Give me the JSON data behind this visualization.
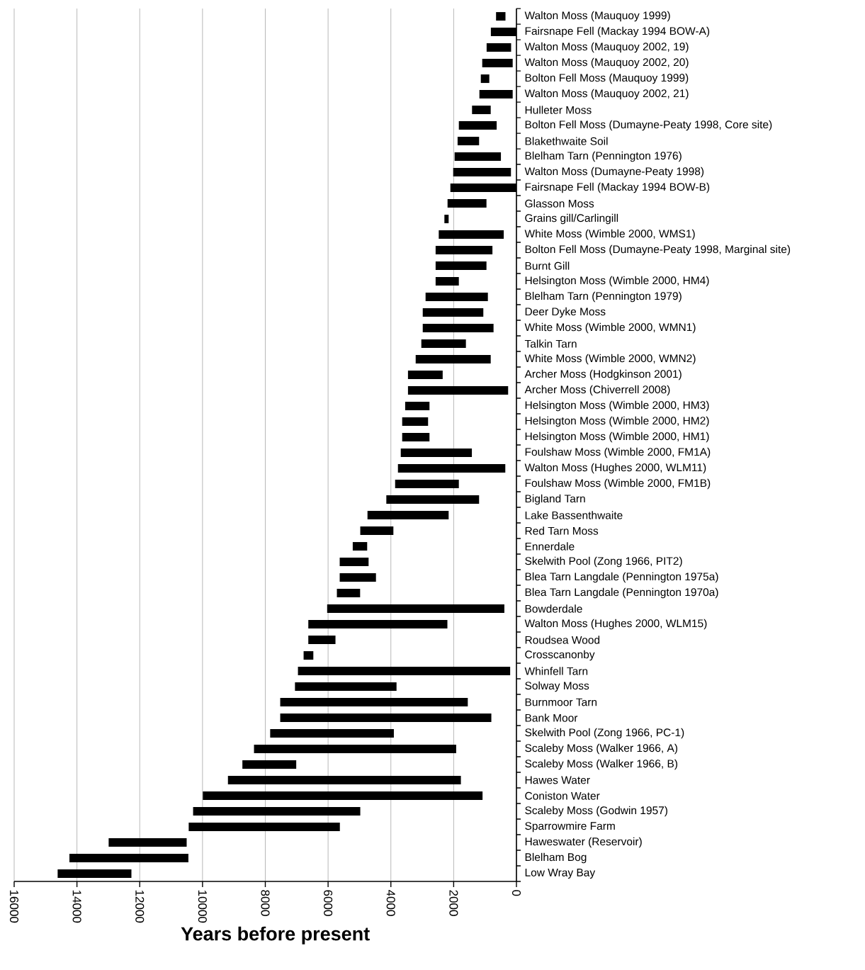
{
  "chart_data": {
    "type": "bar",
    "orientation": "horizontal",
    "xlabel": "Years before present",
    "categories": [
      "Walton Moss (Mauquoy 1999)",
      "Fairsnape Fell (Mackay 1994 BOW-A)",
      "Walton Moss (Mauquoy 2002, 19)",
      "Walton Moss (Mauquoy 2002, 20)",
      "Bolton Fell Moss (Mauquoy 1999)",
      "Walton Moss (Mauquoy 2002, 21)",
      "Hulleter Moss",
      "Bolton Fell Moss (Dumayne-Peaty 1998, Core site)",
      "Blakethwaite Soil",
      "Blelham Tarn (Pennington 1976)",
      "Walton Moss (Dumayne-Peaty 1998)",
      "Fairsnape Fell (Mackay 1994 BOW-B)",
      "Glasson Moss",
      "Grains gill/Carlingill",
      "White Moss (Wimble 2000, WMS1)",
      "Bolton Fell Moss (Dumayne-Peaty 1998, Marginal site)",
      "Burnt Gill",
      "Helsington Moss (Wimble 2000, HM4)",
      "Blelham Tarn (Pennington 1979)",
      "Deer Dyke Moss",
      "White Moss (Wimble 2000, WMN1)",
      "Talkin Tarn",
      "White Moss (Wimble 2000, WMN2)",
      "Archer Moss (Hodgkinson 2001)",
      "Archer Moss (Chiverrell 2008)",
      "Helsington Moss (Wimble 2000, HM3)",
      "Helsington Moss (Wimble 2000, HM2)",
      "Helsington Moss (Wimble 2000, HM1)",
      "Foulshaw Moss (Wimble 2000, FM1A)",
      "Walton Moss (Hughes 2000, WLM11)",
      "Foulshaw Moss (Wimble 2000, FM1B)",
      "Bigland Tarn",
      "Lake Bassenthwaite",
      "Red Tarn Moss",
      "Ennerdale",
      "Skelwith Pool (Zong 1966, PIT2)",
      "Blea Tarn Langdale (Pennington 1975a)",
      "Blea Tarn Langdale (Pennington 1970a)",
      "Bowderdale",
      "Walton Moss (Hughes 2000, WLM15)",
      "Roudsea Wood",
      "Crosscanonby",
      "Whinfell Tarn",
      "Solway Moss",
      "Burnmoor Tarn",
      "Bank Moor",
      "Skelwith Pool (Zong 1966, PC-1)",
      "Scaleby Moss (Walker 1966, A)",
      "Scaleby Moss (Walker 1966, B)",
      "Hawes Water",
      "Coniston Water",
      "Scaleby Moss (Godwin 1957)",
      "Sparrowmire Farm",
      "Haweswater (Reservoir)",
      "Blelham Bog",
      "Low Wray Bay"
    ],
    "base": [
      350,
      0,
      170,
      120,
      865,
      120,
      820,
      630,
      1190,
      495,
      175,
      0,
      955,
      2160,
      405,
      765,
      955,
      1835,
      910,
      1055,
      730,
      1610,
      820,
      2350,
      265,
      2770,
      2815,
      2770,
      1420,
      355,
      1835,
      1190,
      2160,
      3920,
      4755,
      4710,
      4475,
      4980,
      385,
      2200,
      5765,
      6470,
      200,
      3820,
      1550,
      800,
      3905,
      1920,
      7015,
      1770,
      1080,
      4975,
      5625,
      10505,
      10450,
      12265
    ],
    "values": [
      300,
      815,
      780,
      970,
      270,
      1060,
      595,
      1205,
      685,
      1475,
      1840,
      2105,
      1240,
      135,
      2070,
      1810,
      1620,
      740,
      1985,
      1930,
      2255,
      1420,
      2390,
      1105,
      3190,
      775,
      825,
      870,
      2265,
      3420,
      2030,
      2955,
      2585,
      1055,
      460,
      920,
      1155,
      740,
      5645,
      4430,
      865,
      310,
      6760,
      3235,
      5975,
      6725,
      3940,
      6440,
      1715,
      7420,
      8910,
      5325,
      4815,
      2485,
      3790,
      2350
    ],
    "color": "#000000",
    "xlim": [
      16000,
      0
    ],
    "xticks": [
      0,
      2000,
      4000,
      6000,
      8000,
      10000,
      12000,
      14000,
      16000
    ],
    "grid": "x"
  }
}
